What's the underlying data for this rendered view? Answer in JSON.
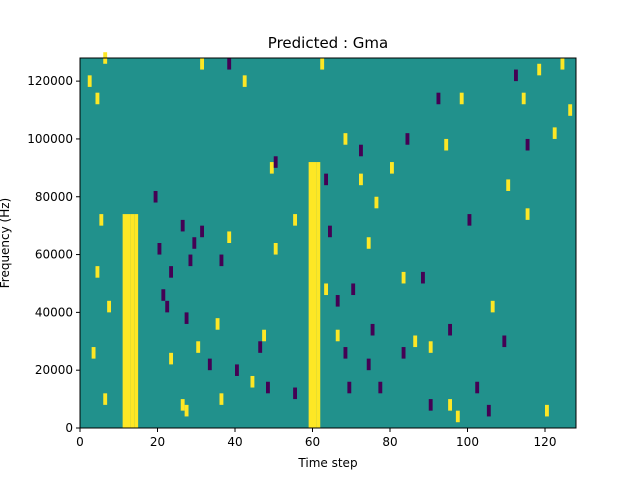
{
  "chart_data": {
    "type": "heatmap",
    "title": "Predicted : Gma",
    "xlabel": "Time step",
    "ylabel": "Frequency (Hz)",
    "xlim": [
      0,
      128
    ],
    "ylim": [
      0,
      128000
    ],
    "x_ticks": [
      0,
      20,
      40,
      60,
      80,
      100,
      120
    ],
    "x_tick_labels": [
      "0",
      "20",
      "40",
      "60",
      "80",
      "100",
      "120"
    ],
    "y_ticks": [
      0,
      20000,
      40000,
      60000,
      80000,
      100000,
      120000
    ],
    "y_tick_labels": [
      "0",
      "20000",
      "40000",
      "60000",
      "80000",
      "100000",
      "120000"
    ],
    "colormap": {
      "low": "#440154",
      "mid": "#21918c",
      "high": "#fde725"
    },
    "background_value": "mid",
    "bins": {
      "time_steps": 128,
      "frequency_bins": 64,
      "bin_width_hz": 2000
    },
    "dense_bands_high": [
      {
        "time_step_range": [
          11,
          15
        ],
        "frequency_range_hz": [
          0,
          74000
        ]
      },
      {
        "time_step_range": [
          59,
          62
        ],
        "frequency_range_hz": [
          0,
          92000
        ]
      }
    ],
    "sparse_high_cells_approx": [
      [
        2,
        118000
      ],
      [
        4,
        112000
      ],
      [
        5,
        70000
      ],
      [
        6,
        126000
      ],
      [
        3,
        24000
      ],
      [
        4,
        52000
      ],
      [
        6,
        8000
      ],
      [
        7,
        40000
      ],
      [
        23,
        22000
      ],
      [
        26,
        6000
      ],
      [
        27,
        4000
      ],
      [
        30,
        26000
      ],
      [
        31,
        124000
      ],
      [
        35,
        34000
      ],
      [
        36,
        8000
      ],
      [
        38,
        64000
      ],
      [
        42,
        118000
      ],
      [
        44,
        14000
      ],
      [
        47,
        30000
      ],
      [
        49,
        88000
      ],
      [
        50,
        60000
      ],
      [
        55,
        70000
      ],
      [
        62,
        124000
      ],
      [
        63,
        46000
      ],
      [
        66,
        30000
      ],
      [
        68,
        98000
      ],
      [
        72,
        84000
      ],
      [
        74,
        62000
      ],
      [
        76,
        76000
      ],
      [
        80,
        88000
      ],
      [
        83,
        50000
      ],
      [
        86,
        28000
      ],
      [
        90,
        26000
      ],
      [
        94,
        96000
      ],
      [
        95,
        6000
      ],
      [
        97,
        2000
      ],
      [
        98,
        112000
      ],
      [
        106,
        40000
      ],
      [
        110,
        82000
      ],
      [
        114,
        112000
      ],
      [
        115,
        72000
      ],
      [
        118,
        122000
      ],
      [
        120,
        4000
      ],
      [
        122,
        100000
      ],
      [
        124,
        124000
      ],
      [
        126,
        108000
      ]
    ],
    "sparse_low_cells_approx": [
      [
        19,
        78000
      ],
      [
        20,
        60000
      ],
      [
        21,
        44000
      ],
      [
        22,
        40000
      ],
      [
        23,
        52000
      ],
      [
        26,
        68000
      ],
      [
        27,
        36000
      ],
      [
        28,
        56000
      ],
      [
        29,
        62000
      ],
      [
        31,
        66000
      ],
      [
        33,
        20000
      ],
      [
        36,
        56000
      ],
      [
        38,
        124000
      ],
      [
        40,
        18000
      ],
      [
        46,
        26000
      ],
      [
        48,
        12000
      ],
      [
        50,
        90000
      ],
      [
        55,
        10000
      ],
      [
        63,
        84000
      ],
      [
        64,
        66000
      ],
      [
        66,
        42000
      ],
      [
        68,
        24000
      ],
      [
        69,
        12000
      ],
      [
        70,
        46000
      ],
      [
        72,
        94000
      ],
      [
        74,
        20000
      ],
      [
        75,
        32000
      ],
      [
        77,
        12000
      ],
      [
        83,
        24000
      ],
      [
        84,
        98000
      ],
      [
        88,
        50000
      ],
      [
        90,
        6000
      ],
      [
        92,
        112000
      ],
      [
        95,
        32000
      ],
      [
        100,
        70000
      ],
      [
        102,
        12000
      ],
      [
        105,
        4000
      ],
      [
        109,
        28000
      ],
      [
        112,
        120000
      ],
      [
        115,
        96000
      ]
    ]
  }
}
